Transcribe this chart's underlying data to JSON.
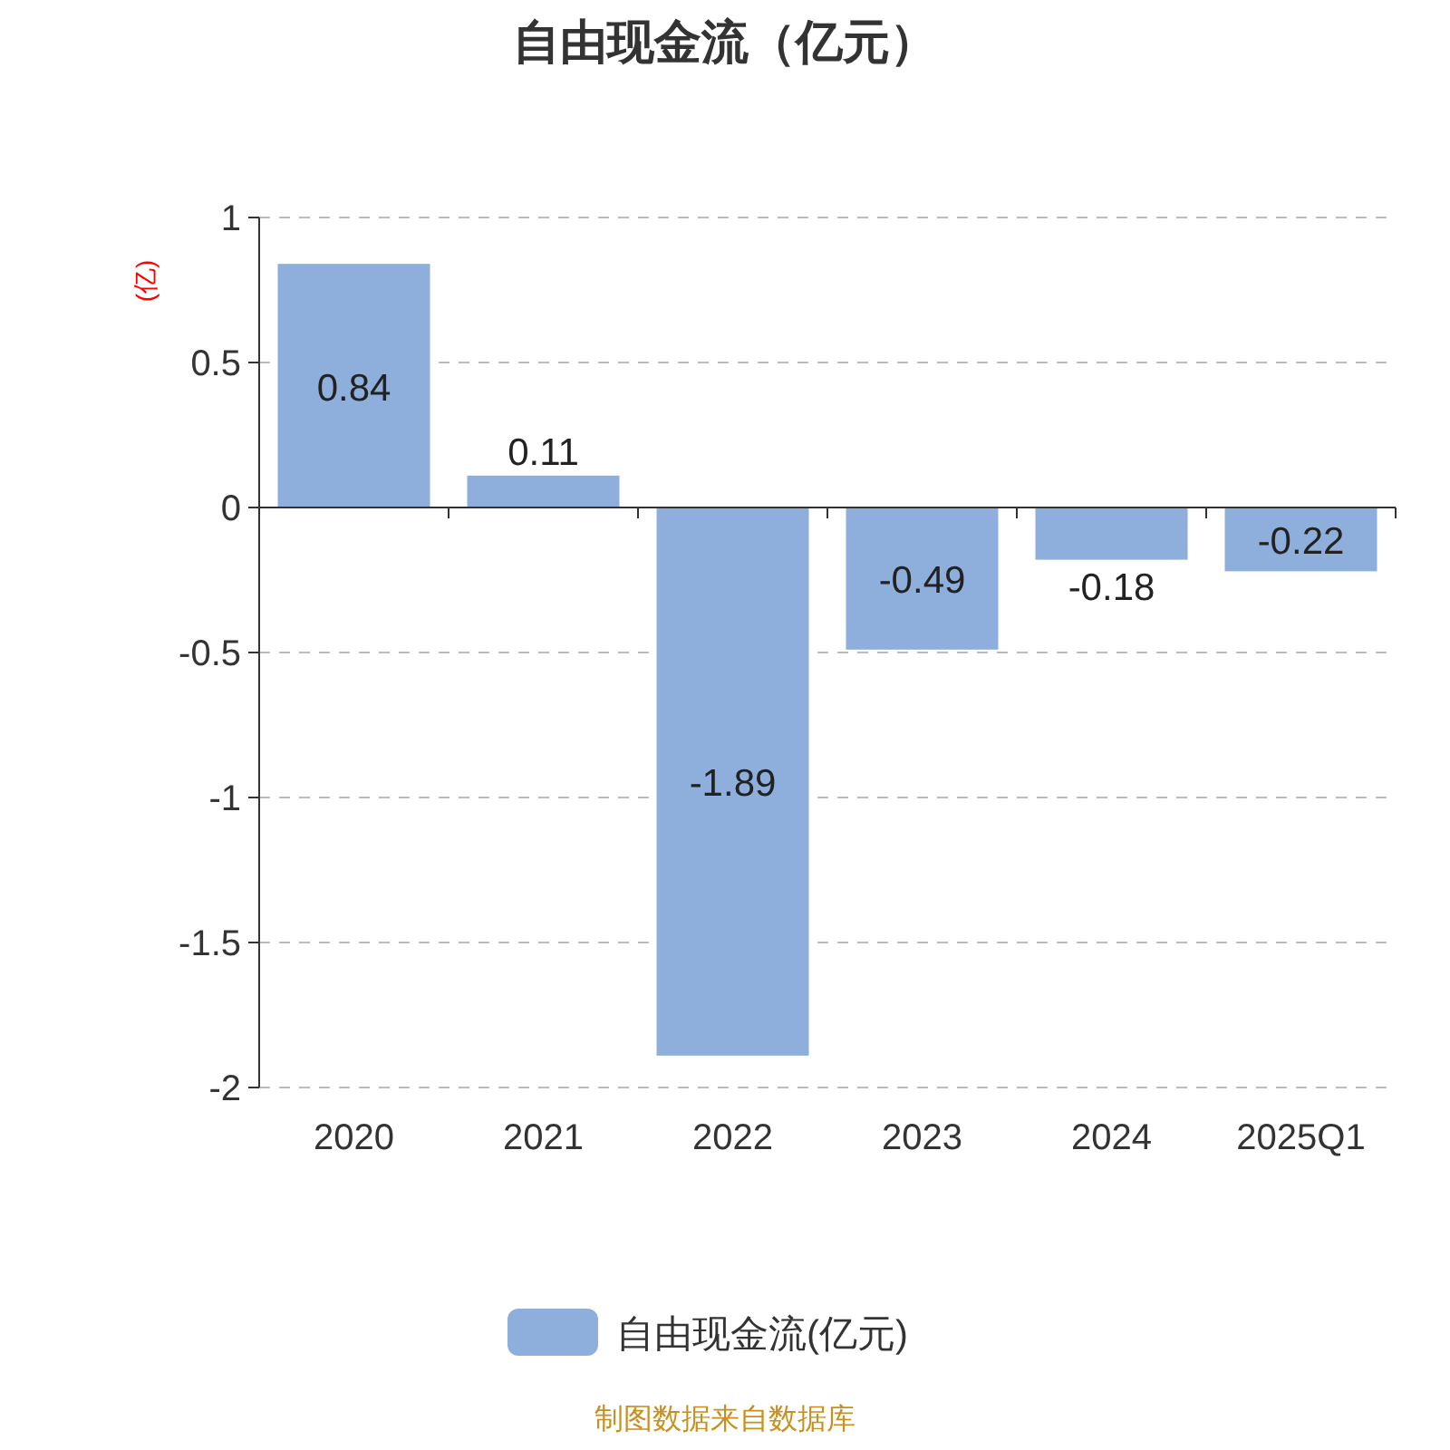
{
  "chart_data": {
    "type": "bar",
    "title": "自由现金流（亿元）",
    "ylabel": "(亿)",
    "categories": [
      "2020",
      "2021",
      "2022",
      "2023",
      "2024",
      "2025Q1"
    ],
    "series": [
      {
        "name": "自由现金流(亿元)",
        "color": "#8eaedb",
        "values": [
          0.84,
          0.11,
          -1.89,
          -0.49,
          -0.18,
          -0.22
        ]
      }
    ],
    "ylim": [
      -2,
      1
    ],
    "yticks": [
      -2,
      -1.5,
      -1,
      -0.5,
      0,
      0.5,
      1
    ],
    "grid": "y",
    "legend": "bottom",
    "data_labels": true,
    "annotations": [
      "制图数据来自数据库"
    ]
  }
}
